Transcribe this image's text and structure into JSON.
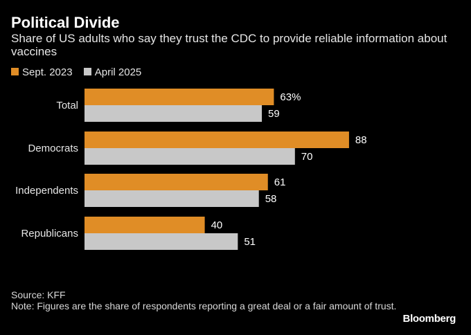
{
  "title": "Political Divide",
  "subtitle": "Share of US adults who say they trust the CDC to provide reliable information about vaccines",
  "legend": [
    {
      "label": "Sept. 2023",
      "color": "#e08d26"
    },
    {
      "label": "April 2025",
      "color": "#c8c8c8"
    }
  ],
  "chart_data": {
    "type": "bar",
    "orientation": "horizontal",
    "title": "Political Divide",
    "subtitle": "Share of US adults who say they trust the CDC to provide reliable information about vaccines",
    "categories": [
      "Total",
      "Democrats",
      "Independents",
      "Republicans"
    ],
    "series": [
      {
        "name": "Sept. 2023",
        "color": "#e08d26",
        "values": [
          63,
          88,
          61,
          40
        ],
        "labels": [
          "63%",
          "88",
          "61",
          "40"
        ]
      },
      {
        "name": "April 2025",
        "color": "#c8c8c8",
        "values": [
          59,
          70,
          58,
          51
        ],
        "labels": [
          "59",
          "70",
          "58",
          "51"
        ]
      }
    ],
    "xlim": [
      0,
      100
    ],
    "grid": false,
    "legend_position": "top-left"
  },
  "footer": {
    "source": "Source: KFF",
    "note": "Note: Figures are the share of respondents reporting a great deal or a fair amount of trust."
  },
  "brand": "Bloomberg"
}
